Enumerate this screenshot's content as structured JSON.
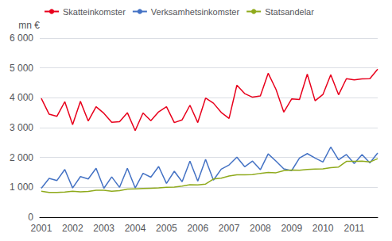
{
  "chart_data": {
    "type": "line",
    "y_label": "mn €",
    "x": [
      2001,
      2001.25,
      2001.5,
      2001.75,
      2002,
      2002.25,
      2002.5,
      2002.75,
      2003,
      2003.25,
      2003.5,
      2003.75,
      2004,
      2004.25,
      2004.5,
      2004.75,
      2005,
      2005.25,
      2005.5,
      2005.75,
      2006,
      2006.25,
      2006.5,
      2006.75,
      2007,
      2007.25,
      2007.5,
      2007.75,
      2008,
      2008.25,
      2008.5,
      2008.75,
      2009,
      2009.25,
      2009.5,
      2009.75,
      2010,
      2010.25,
      2010.5,
      2010.75,
      2011,
      2011.25,
      2011.5,
      2011.75
    ],
    "xlim": [
      2000.95,
      2011.75
    ],
    "xticks": [
      2001,
      2002,
      2003,
      2004,
      2005,
      2006,
      2007,
      2008,
      2009,
      2010,
      2011
    ],
    "ylim": [
      0,
      6000
    ],
    "yticks": [
      0,
      {
        "value": 1000,
        "label": "1 000"
      },
      {
        "value": 2000,
        "label": "2 000"
      },
      {
        "value": 3000,
        "label": "3 000"
      },
      {
        "value": 4000,
        "label": "4 000"
      },
      {
        "value": 5000,
        "label": "5 000"
      },
      {
        "value": 6000,
        "label": "6 000"
      }
    ],
    "grid": true,
    "legend": "upper left",
    "series": [
      {
        "name": "Skatteinkomster",
        "color": "#e8001c",
        "values": [
          3980,
          3450,
          3380,
          3870,
          3100,
          3880,
          3220,
          3700,
          3480,
          3180,
          3200,
          3500,
          2900,
          3490,
          3230,
          3530,
          3700,
          3170,
          3260,
          3750,
          3170,
          3990,
          3820,
          3510,
          3310,
          4420,
          4140,
          4020,
          4060,
          4820,
          4280,
          3520,
          3960,
          3940,
          4790,
          3900,
          4110,
          4770,
          4100,
          4640,
          4600,
          4630,
          4640,
          4960
        ]
      },
      {
        "name": "Verksamhetsinkomster",
        "color": "#4472c4",
        "values": [
          970,
          1300,
          1230,
          1600,
          980,
          1360,
          1280,
          1640,
          970,
          1350,
          1000,
          1640,
          980,
          1470,
          1340,
          1700,
          1130,
          1540,
          1190,
          1880,
          1210,
          1940,
          1240,
          1610,
          1750,
          2010,
          1690,
          1880,
          1590,
          2120,
          1880,
          1620,
          1560,
          1980,
          2130,
          1980,
          1850,
          2350,
          1920,
          2100,
          1800,
          2100,
          1820,
          2150
        ]
      },
      {
        "name": "Statsandelar",
        "color": "#8faa1c",
        "values": [
          870,
          830,
          830,
          840,
          870,
          850,
          860,
          900,
          900,
          870,
          890,
          940,
          950,
          960,
          970,
          980,
          1000,
          1010,
          1040,
          1090,
          1080,
          1110,
          1280,
          1310,
          1380,
          1420,
          1420,
          1430,
          1470,
          1500,
          1490,
          1560,
          1580,
          1570,
          1600,
          1610,
          1620,
          1660,
          1680,
          1870,
          1870,
          1880,
          1850,
          1960
        ]
      }
    ]
  }
}
